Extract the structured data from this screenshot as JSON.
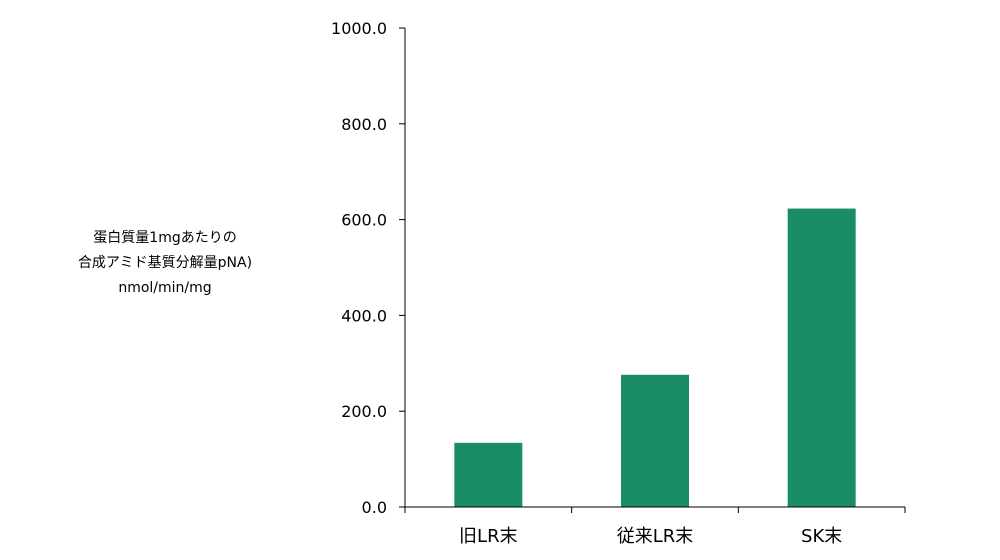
{
  "chart_data": {
    "type": "bar",
    "categories": [
      "旧LR末",
      "従来LR末",
      "SK末"
    ],
    "values": [
      134,
      276,
      623
    ],
    "ylabel_lines": [
      "蛋白質量1mgあたりの",
      "合成アミド基質分解量pNA)",
      "nmol/min/mg"
    ],
    "ylim": [
      0,
      1000
    ],
    "yticks": [
      "0.0",
      "200.0",
      "400.0",
      "600.0",
      "800.0",
      "1000.0"
    ],
    "bar_color": "#1a8c68",
    "grid": false,
    "legend": "none"
  }
}
